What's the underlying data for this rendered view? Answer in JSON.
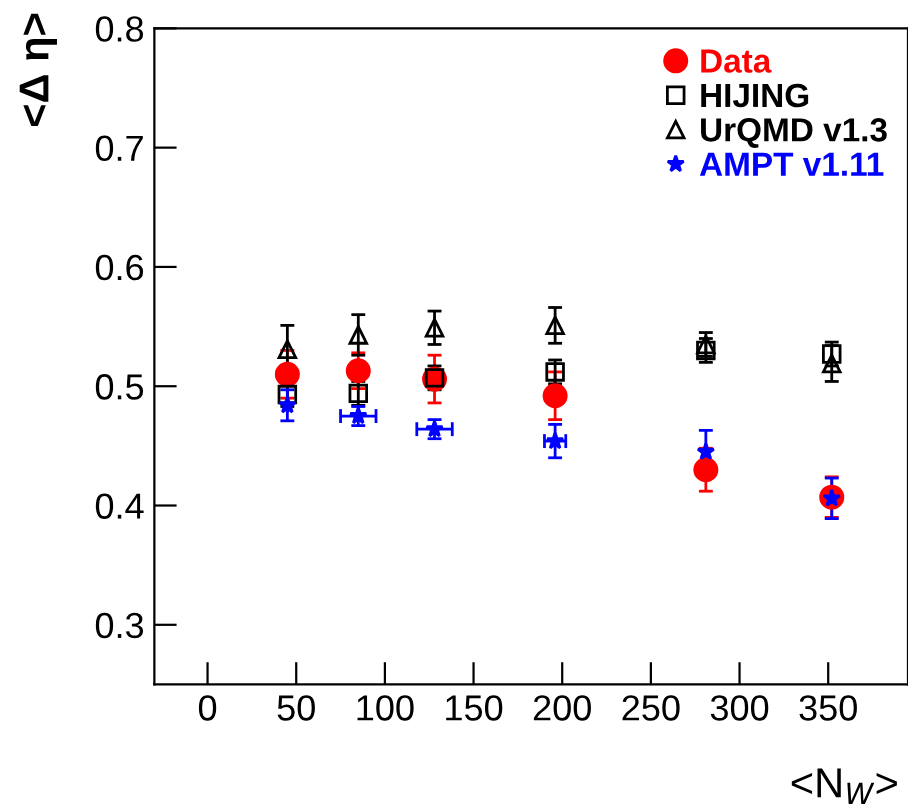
{
  "chart_data": {
    "type": "scatter",
    "xlabel": "<N$_{W}$>",
    "ylabel": "<Δ η>",
    "xlim": [
      -30,
      395
    ],
    "ylim": [
      0.25,
      0.8
    ],
    "xticks": [
      0,
      50,
      100,
      150,
      200,
      250,
      300,
      350
    ],
    "yticks": [
      0.3,
      0.4,
      0.5,
      0.6,
      0.7,
      0.8
    ],
    "grid": false,
    "legend": "top right",
    "series": [
      {
        "name": "Data",
        "color": "#ff0000",
        "marker": "circle",
        "x": [
          45,
          85,
          128,
          196,
          281,
          352
        ],
        "values": [
          0.51,
          0.513,
          0.506,
          0.492,
          0.43,
          0.407
        ],
        "errors": [
          0.02,
          0.015,
          0.02,
          0.02,
          0.018,
          0.017
        ]
      },
      {
        "name": "HIJING",
        "color": "#000000",
        "marker": "square",
        "x": [
          45,
          85,
          128,
          196,
          281,
          352
        ],
        "values": [
          0.493,
          0.494,
          0.507,
          0.512,
          0.53,
          0.527
        ],
        "errors": [
          0.01,
          0.01,
          0.01,
          0.01,
          0.01,
          0.01
        ]
      },
      {
        "name": "UrQMD v1.3",
        "color": "#000000",
        "marker": "triangle",
        "x": [
          45,
          85,
          128,
          196,
          281,
          352
        ],
        "values": [
          0.531,
          0.543,
          0.549,
          0.551,
          0.535,
          0.519
        ],
        "errors": [
          0.02,
          0.017,
          0.014,
          0.015,
          0.01,
          0.015
        ]
      },
      {
        "name": "AMPT v1.11",
        "color": "#0000ff",
        "marker": "star",
        "x": [
          45,
          85,
          128,
          196,
          281,
          352
        ],
        "values": [
          0.484,
          0.475,
          0.464,
          0.454,
          0.445,
          0.406
        ],
        "errors": [
          0.013,
          0.008,
          0.008,
          0.014,
          0.018,
          0.017
        ],
        "xerrors": [
          null,
          10,
          10,
          6,
          null,
          null
        ]
      }
    ]
  }
}
